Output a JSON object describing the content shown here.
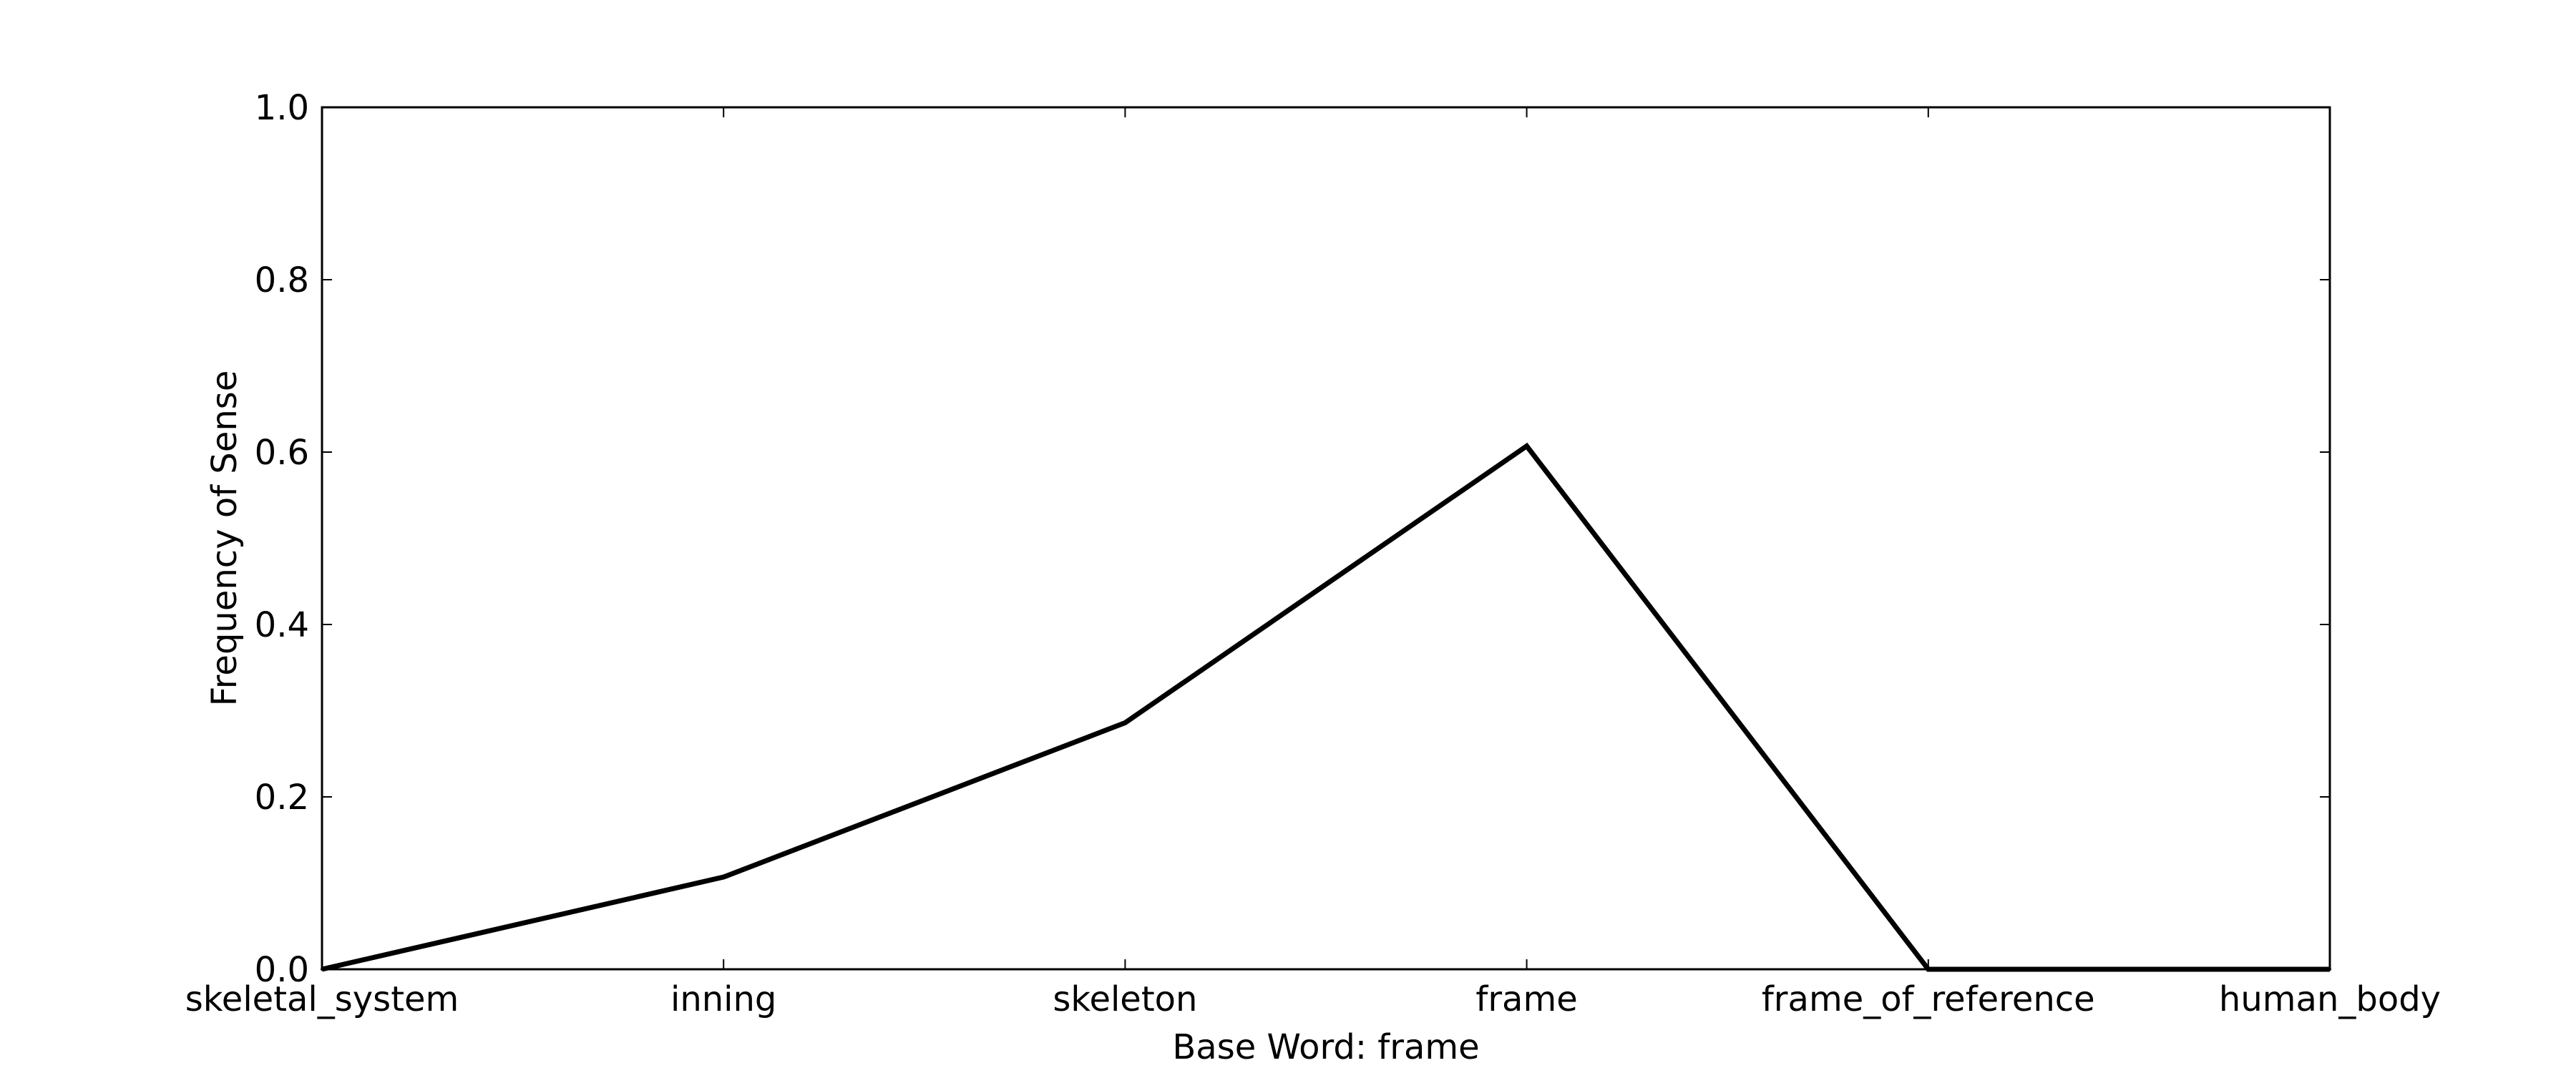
{
  "chart_data": {
    "type": "line",
    "title": "",
    "xlabel": "Base Word: frame",
    "ylabel": "Frequency of Sense",
    "categories": [
      "skeletal_system",
      "inning",
      "skeleton",
      "frame",
      "frame_of_reference",
      "human_body"
    ],
    "series": [
      {
        "values": [
          0.0,
          0.107,
          0.286,
          0.607,
          0.0,
          0.0
        ],
        "color": "#000000"
      }
    ],
    "ylim": [
      0.0,
      1.0
    ],
    "yticks": [
      "0.0",
      "0.2",
      "0.4",
      "0.6",
      "0.8",
      "1.0"
    ],
    "grid": false,
    "legend": "none"
  }
}
